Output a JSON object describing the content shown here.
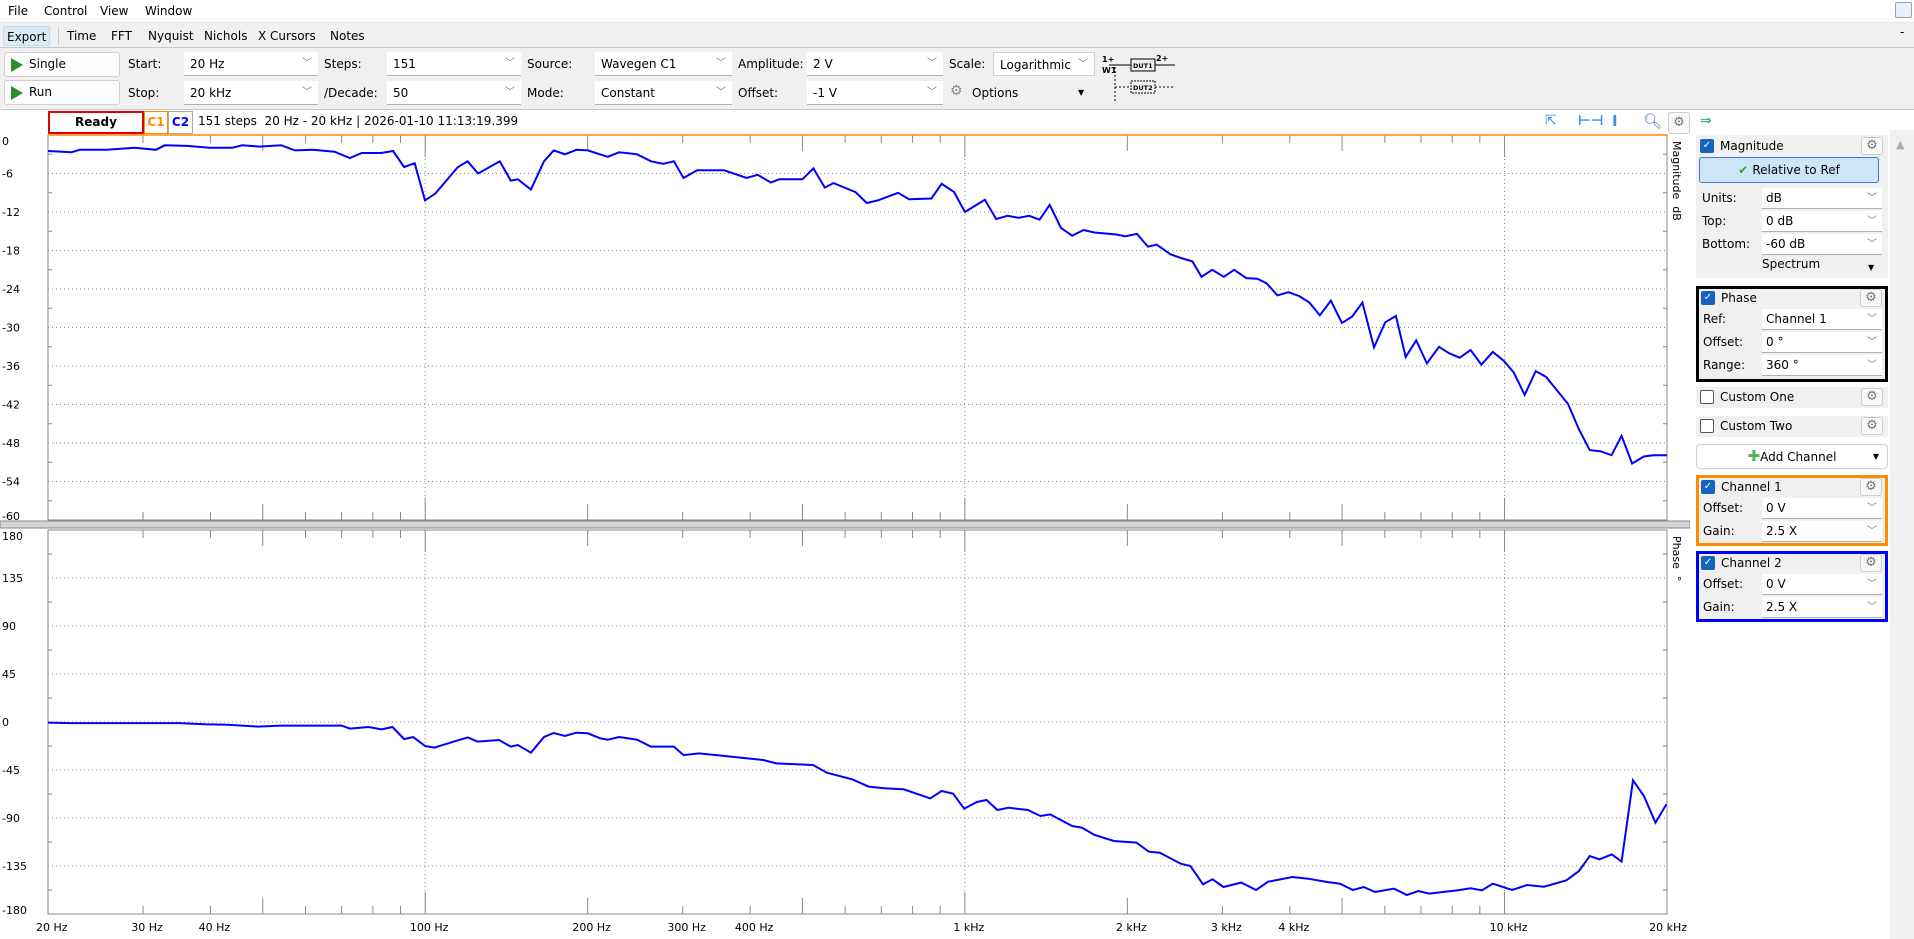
{
  "menu": {
    "items": [
      "File",
      "Control",
      "View",
      "Window"
    ]
  },
  "tabs": [
    "Export",
    "Time",
    "FFT",
    "Nyquist",
    "Nichols",
    "X Cursors",
    "Notes"
  ],
  "toolbar": {
    "single_label": "Single",
    "run_label": "Run",
    "start_label": "Start:",
    "start_value": "20 Hz",
    "stop_label": "Stop:",
    "stop_value": "20 kHz",
    "steps_label": "Steps:",
    "steps_value": "151",
    "decade_label": "/Decade:",
    "decade_value": "50",
    "source_label": "Source:",
    "source_value": "Wavegen C1",
    "mode_label": "Mode:",
    "mode_value": "Constant",
    "amplitude_label": "Amplitude:",
    "amplitude_value": "2 V",
    "offset_label": "Offset:",
    "offset_value": "-1 V",
    "scale_label": "Scale:",
    "scale_value": "Logarithmic",
    "options_label": "Options",
    "diagram": {
      "in1": "1+",
      "w1": "W1",
      "dut1": "DUT1",
      "dut2": "DUT2",
      "in2": "2+"
    }
  },
  "status": {
    "state": "Ready",
    "c1": "C1",
    "c2": "C2",
    "info": "151 steps  20 Hz - 20 kHz | 2026-01-10 11:13:19.399",
    "state_color": "#e00000"
  },
  "colors": {
    "c1": "#ff8c00",
    "c2": "#0000ff",
    "trace": "#0000ff",
    "phase_box": "#000000"
  },
  "panel": {
    "magnitude": {
      "label": "Magnitude",
      "checked": true,
      "relative_button": "Relative to Ref",
      "units_label": "Units:",
      "units_value": "dB",
      "top_label": "Top:",
      "top_value": "0 dB",
      "bottom_label": "Bottom:",
      "bottom_value": "-60 dB",
      "spectrum_label": "Spectrum"
    },
    "phase": {
      "label": "Phase",
      "checked": true,
      "ref_label": "Ref:",
      "ref_value": "Channel 1",
      "offset_label": "Offset:",
      "offset_value": "0 °",
      "range_label": "Range:",
      "range_value": "360 °"
    },
    "custom_one": {
      "label": "Custom One",
      "checked": false
    },
    "custom_two": {
      "label": "Custom Two",
      "checked": false
    },
    "add_channel": "Add Channel",
    "channel1": {
      "label": "Channel 1",
      "checked": true,
      "offset_label": "Offset:",
      "offset_value": "0 V",
      "gain_label": "Gain:",
      "gain_value": "2.5 X"
    },
    "channel2": {
      "label": "Channel 2",
      "checked": true,
      "offset_label": "Offset:",
      "offset_value": "0 V",
      "gain_label": "Gain:",
      "gain_value": "2.5 X"
    }
  },
  "chart_data": [
    {
      "type": "line",
      "ylabel": "Magnitude  dB",
      "xscale": "log",
      "xlim": [
        20,
        20000
      ],
      "ylim": [
        -60,
        0
      ],
      "grid": true,
      "xticks": [
        {
          "f": 20,
          "label": "20 Hz"
        },
        {
          "f": 30,
          "label": "30 Hz"
        },
        {
          "f": 40,
          "label": "40 Hz"
        },
        {
          "f": 100,
          "label": "100 Hz"
        },
        {
          "f": 200,
          "label": "200 Hz"
        },
        {
          "f": 300,
          "label": "300 Hz"
        },
        {
          "f": 400,
          "label": "400 Hz"
        },
        {
          "f": 1000,
          "label": "1 kHz"
        },
        {
          "f": 2000,
          "label": "2 kHz"
        },
        {
          "f": 3000,
          "label": "3 kHz"
        },
        {
          "f": 4000,
          "label": "4 kHz"
        },
        {
          "f": 10000,
          "label": "10 kHz"
        },
        {
          "f": 20000,
          "label": "20 kHz"
        }
      ],
      "yticks": [
        "0",
        "-6",
        "-12",
        "-18",
        "-24",
        "-30",
        "-36",
        "-42",
        "-48",
        "-54",
        "-60"
      ],
      "series": [
        {
          "points": [
            [
              20,
              -2.5
            ],
            [
              22.1,
              -2.7
            ],
            [
              22.9,
              -2.3
            ],
            [
              25.7,
              -2.3
            ],
            [
              28.9,
              -2.0
            ],
            [
              31.7,
              -2.3
            ],
            [
              32.9,
              -1.6
            ],
            [
              36.2,
              -1.7
            ],
            [
              39.8,
              -2.0
            ],
            [
              43.9,
              -2.0
            ],
            [
              45.8,
              -1.6
            ],
            [
              49.3,
              -1.8
            ],
            [
              54.1,
              -1.6
            ],
            [
              57.4,
              -2.4
            ],
            [
              61.9,
              -2.3
            ],
            [
              67.9,
              -2.6
            ],
            [
              72.5,
              -3.6
            ],
            [
              76.3,
              -2.8
            ],
            [
              82.8,
              -2.8
            ],
            [
              87.2,
              -2.5
            ],
            [
              91.4,
              -5.0
            ],
            [
              95.6,
              -4.4
            ],
            [
              99.9,
              -10.2
            ],
            [
              104.5,
              -9.1
            ],
            [
              114.9,
              -5.0
            ],
            [
              119.8,
              -4.1
            ],
            [
              125.3,
              -6.0
            ],
            [
              137.5,
              -4.1
            ],
            [
              144,
              -7.1
            ],
            [
              148.5,
              -6.9
            ],
            [
              157,
              -8.5
            ],
            [
              166,
              -4.1
            ],
            [
              173,
              -2.4
            ],
            [
              181.6,
              -3.0
            ],
            [
              190.6,
              -2.3
            ],
            [
              200,
              -2.4
            ],
            [
              217.9,
              -3.4
            ],
            [
              228.6,
              -2.7
            ],
            [
              247,
              -3.0
            ],
            [
              262,
              -4.1
            ],
            [
              276,
              -4.5
            ],
            [
              289,
              -4.1
            ],
            [
              301,
              -6.7
            ],
            [
              319,
              -5.5
            ],
            [
              358,
              -5.5
            ],
            [
              394,
              -6.7
            ],
            [
              413,
              -6.2
            ],
            [
              437,
              -7.4
            ],
            [
              453,
              -6.9
            ],
            [
              500,
              -6.9
            ],
            [
              524,
              -5.2
            ],
            [
              550,
              -8.2
            ],
            [
              571,
              -7.5
            ],
            [
              627,
              -8.9
            ],
            [
              658,
              -10.6
            ],
            [
              690,
              -10.2
            ],
            [
              752,
              -9.0
            ],
            [
              788,
              -10.0
            ],
            [
              867,
              -9.9
            ],
            [
              906,
              -7.6
            ],
            [
              955,
              -8.9
            ],
            [
              1000,
              -12.0
            ],
            [
              1089,
              -10.1
            ],
            [
              1143,
              -13.1
            ],
            [
              1199,
              -12.6
            ],
            [
              1257,
              -12.9
            ],
            [
              1316,
              -12.6
            ],
            [
              1375,
              -13.2
            ],
            [
              1436,
              -10.9
            ],
            [
              1507,
              -14.5
            ],
            [
              1581,
              -15.7
            ],
            [
              1659,
              -14.8
            ],
            [
              1738,
              -15.2
            ],
            [
              1910,
              -15.5
            ],
            [
              1983,
              -15.8
            ],
            [
              2083,
              -15.4
            ],
            [
              2183,
              -17.4
            ],
            [
              2268,
              -17.1
            ],
            [
              2404,
              -18.6
            ],
            [
              2520,
              -19.2
            ],
            [
              2640,
              -19.7
            ],
            [
              2745,
              -22.1
            ],
            [
              2873,
              -21.0
            ],
            [
              3018,
              -22.1
            ],
            [
              3155,
              -21.0
            ],
            [
              3322,
              -22.3
            ],
            [
              3483,
              -22.4
            ],
            [
              3620,
              -23.1
            ],
            [
              3796,
              -25.0
            ],
            [
              3977,
              -24.5
            ],
            [
              4165,
              -25.1
            ],
            [
              4348,
              -26.1
            ],
            [
              4547,
              -28.1
            ],
            [
              4766,
              -25.8
            ],
            [
              4996,
              -29.3
            ],
            [
              5218,
              -28.3
            ],
            [
              5452,
              -26.1
            ],
            [
              5730,
              -33.1
            ],
            [
              6010,
              -29.2
            ],
            [
              6290,
              -28.2
            ],
            [
              6560,
              -34.6
            ],
            [
              6860,
              -32.0
            ],
            [
              7180,
              -35.6
            ],
            [
              7560,
              -33.0
            ],
            [
              7890,
              -34.0
            ],
            [
              8260,
              -34.7
            ],
            [
              8650,
              -33.5
            ],
            [
              9060,
              -35.8
            ],
            [
              9510,
              -33.8
            ],
            [
              9970,
              -35.2
            ],
            [
              10400,
              -37.0
            ],
            [
              10900,
              -40.5
            ],
            [
              11420,
              -36.8
            ],
            [
              11940,
              -37.7
            ],
            [
              12510,
              -39.8
            ],
            [
              13110,
              -41.9
            ],
            [
              13740,
              -45.9
            ],
            [
              14380,
              -49.1
            ],
            [
              15070,
              -49.3
            ],
            [
              15780,
              -49.9
            ],
            [
              16480,
              -46.9
            ],
            [
              17230,
              -51.2
            ],
            [
              18120,
              -50.1
            ],
            [
              18900,
              -49.9
            ],
            [
              20000,
              -49.9
            ]
          ]
        }
      ]
    },
    {
      "type": "line",
      "ylabel": "Phase  °",
      "xscale": "log",
      "xlim": [
        20,
        20000
      ],
      "ylim": [
        -180,
        180
      ],
      "grid": true,
      "yticks": [
        "180",
        "135",
        "90",
        "45",
        "0",
        "-45",
        "-90",
        "-135",
        "-180"
      ],
      "series": [
        {
          "points": [
            [
              20,
              -0.6
            ],
            [
              22,
              -1
            ],
            [
              26,
              -1
            ],
            [
              35,
              -1
            ],
            [
              39,
              -2.2
            ],
            [
              43,
              -2.5
            ],
            [
              49,
              -4.3
            ],
            [
              54,
              -3.4
            ],
            [
              70,
              -3.4
            ],
            [
              72.5,
              -6.2
            ],
            [
              78.5,
              -4.7
            ],
            [
              83,
              -6.9
            ],
            [
              87,
              -4.7
            ],
            [
              91.4,
              -16
            ],
            [
              95,
              -14.2
            ],
            [
              100,
              -22.5
            ],
            [
              104,
              -24
            ],
            [
              115,
              -17.2
            ],
            [
              120,
              -14.4
            ],
            [
              125,
              -18.4
            ],
            [
              137,
              -16.9
            ],
            [
              144,
              -23.1
            ],
            [
              148.5,
              -21.6
            ],
            [
              157,
              -28.8
            ],
            [
              166,
              -14.1
            ],
            [
              173,
              -10.3
            ],
            [
              181.6,
              -13.1
            ],
            [
              190.6,
              -10
            ],
            [
              200,
              -10.6
            ],
            [
              211,
              -15.3
            ],
            [
              218,
              -16.6
            ],
            [
              228.6,
              -14.1
            ],
            [
              247,
              -16.6
            ],
            [
              262,
              -23.1
            ],
            [
              289,
              -23.1
            ],
            [
              301,
              -31
            ],
            [
              322,
              -29.4
            ],
            [
              359,
              -31.9
            ],
            [
              423,
              -35.6
            ],
            [
              447,
              -38.8
            ],
            [
              523,
              -40.3
            ],
            [
              555,
              -47.5
            ],
            [
              619,
              -53.8
            ],
            [
              663,
              -60.6
            ],
            [
              710,
              -62.2
            ],
            [
              770,
              -63.1
            ],
            [
              863,
              -71.6
            ],
            [
              905,
              -64.7
            ],
            [
              951,
              -67.2
            ],
            [
              997,
              -81.3
            ],
            [
              1052,
              -75
            ],
            [
              1097,
              -73.1
            ],
            [
              1149,
              -82.5
            ],
            [
              1205,
              -80.3
            ],
            [
              1308,
              -82.5
            ],
            [
              1381,
              -88.1
            ],
            [
              1439,
              -86.6
            ],
            [
              1581,
              -97.5
            ],
            [
              1648,
              -99.1
            ],
            [
              1739,
              -105.9
            ],
            [
              1888,
              -111.6
            ],
            [
              2078,
              -113.1
            ],
            [
              2193,
              -121.6
            ],
            [
              2297,
              -122.5
            ],
            [
              2513,
              -132.8
            ],
            [
              2617,
              -135
            ],
            [
              2762,
              -152.2
            ],
            [
              2877,
              -147.5
            ],
            [
              3013,
              -154.7
            ],
            [
              3251,
              -150.6
            ],
            [
              3464,
              -157.5
            ],
            [
              3647,
              -149.7
            ],
            [
              4044,
              -145.3
            ],
            [
              4328,
              -146.9
            ],
            [
              4690,
              -150
            ],
            [
              4956,
              -151.6
            ],
            [
              5235,
              -157.5
            ],
            [
              5484,
              -154.7
            ],
            [
              5757,
              -159.4
            ],
            [
              6241,
              -156.3
            ],
            [
              6592,
              -162.2
            ],
            [
              6925,
              -158.4
            ],
            [
              7250,
              -160.9
            ],
            [
              8200,
              -157.8
            ],
            [
              8650,
              -155.9
            ],
            [
              9080,
              -157.8
            ],
            [
              9510,
              -151.6
            ],
            [
              10330,
              -157.5
            ],
            [
              11000,
              -152.8
            ],
            [
              11830,
              -154.4
            ],
            [
              13020,
              -148.4
            ],
            [
              13740,
              -139.7
            ],
            [
              14380,
              -125.6
            ],
            [
              14990,
              -128.7
            ],
            [
              15810,
              -124.1
            ],
            [
              16480,
              -130.9
            ],
            [
              17300,
              -54.7
            ],
            [
              18120,
              -69.4
            ],
            [
              19040,
              -94.4
            ],
            [
              19950,
              -77.2
            ]
          ]
        }
      ]
    }
  ]
}
